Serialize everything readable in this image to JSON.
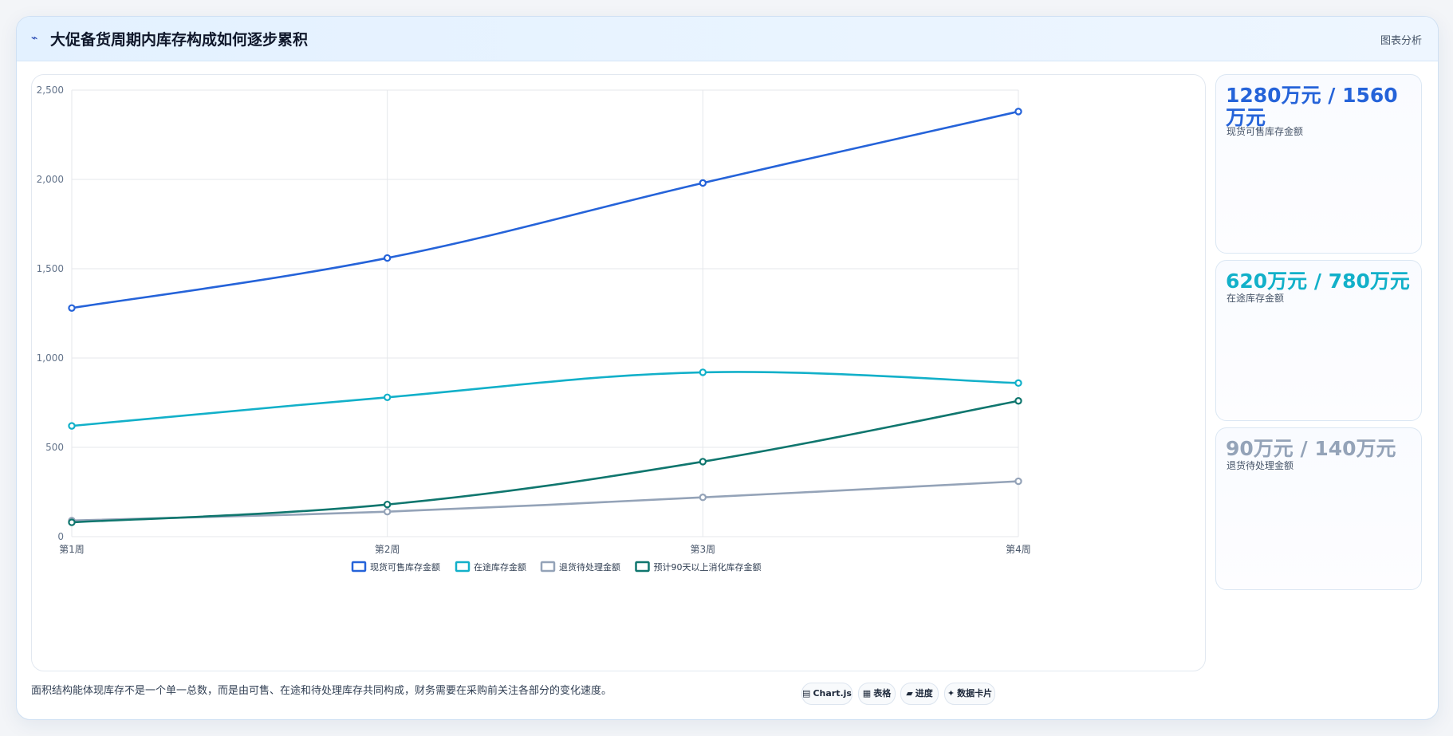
{
  "header": {
    "icon": "trend-icon",
    "title": "大促备货周期内库存构成如何逐步累积",
    "right_label": "图表分析"
  },
  "colors": {
    "available": "#2563d9",
    "transit": "#12b0c9",
    "returns": "#94a3b8",
    "slow": "#0f766e"
  },
  "chart_data": {
    "type": "line",
    "categories": [
      "第1周",
      "第2周",
      "第3周",
      "第4周"
    ],
    "series": [
      {
        "name": "现货可售库存金额",
        "values": [
          1280,
          1560,
          1980,
          2380
        ],
        "color": "#2563d9"
      },
      {
        "name": "在途库存金额",
        "values": [
          620,
          780,
          920,
          860
        ],
        "color": "#12b0c9"
      },
      {
        "name": "退货待处理金额",
        "values": [
          90,
          140,
          220,
          310
        ],
        "color": "#94a3b8"
      },
      {
        "name": "预计90天以上消化库存金额",
        "values": [
          80,
          180,
          420,
          760
        ],
        "color": "#0f766e"
      }
    ],
    "ylim": [
      0,
      2500
    ],
    "yticks": [
      "0",
      "500",
      "1,000",
      "1,500",
      "2,000",
      "2,500"
    ],
    "grid": true,
    "legend": "bottom"
  },
  "cards": [
    {
      "value": "1280万元 / 1560万元",
      "label": "现货可售库存金额",
      "color": "#2563d9"
    },
    {
      "value": "620万元 / 780万元",
      "label": "在途库存金额",
      "color": "#12b0c9"
    },
    {
      "value": "90万元 / 140万元",
      "label": "退货待处理金额",
      "color": "#94a3b8"
    }
  ],
  "footer": {
    "note": "面积结构能体现库存不是一个单一总数，而是由可售、在途和待处理库存共同构成，财务需要在采购前关注各部分的变化速度。",
    "tags": [
      {
        "icon": "chart-icon",
        "glyph": "▤",
        "label": "Chart.js"
      },
      {
        "icon": "table-icon",
        "glyph": "▦",
        "label": "表格"
      },
      {
        "icon": "progress-icon",
        "glyph": "▰",
        "label": "进度"
      },
      {
        "icon": "card-icon",
        "glyph": "✦",
        "label": "数据卡片"
      }
    ]
  }
}
